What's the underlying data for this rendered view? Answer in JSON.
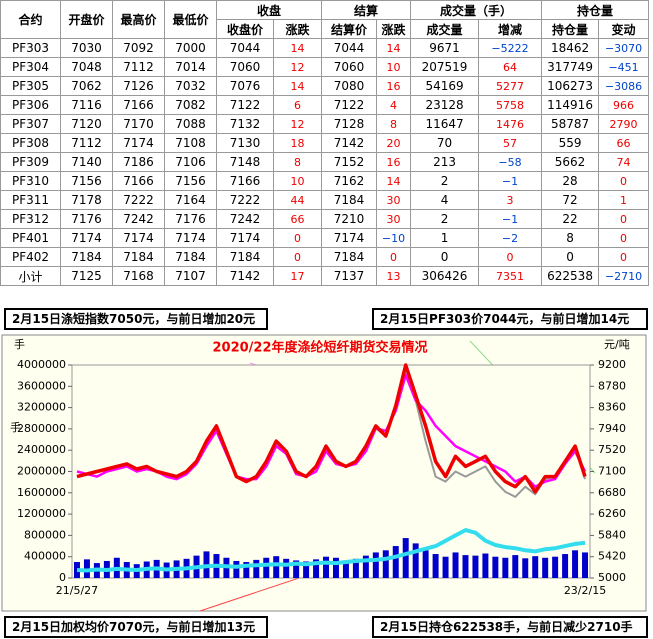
{
  "table": {
    "groups": [
      "合约",
      "开盘价",
      "最高价",
      "最低价",
      "收盘",
      "结算",
      "成交量（手）",
      "持仓量"
    ],
    "subheaders": [
      "收盘价",
      "涨跌",
      "结算价",
      "涨跌",
      "成交量",
      "增减",
      "持仓量",
      "变动"
    ],
    "rows": [
      [
        "PF303",
        "7030",
        "7092",
        "7000",
        "7044",
        "14",
        "7044",
        "14",
        "9671",
        "−5222",
        "18462",
        "−3070"
      ],
      [
        "PF304",
        "7048",
        "7112",
        "7014",
        "7060",
        "12",
        "7060",
        "10",
        "207519",
        "64",
        "317749",
        "−451"
      ],
      [
        "PF305",
        "7062",
        "7126",
        "7032",
        "7076",
        "14",
        "7080",
        "16",
        "54169",
        "5277",
        "106273",
        "−3086"
      ],
      [
        "PF306",
        "7116",
        "7166",
        "7082",
        "7122",
        "6",
        "7122",
        "4",
        "23128",
        "5758",
        "114916",
        "966"
      ],
      [
        "PF307",
        "7120",
        "7170",
        "7088",
        "7132",
        "12",
        "7128",
        "8",
        "11647",
        "1476",
        "58787",
        "2790"
      ],
      [
        "PF308",
        "7112",
        "7174",
        "7108",
        "7130",
        "18",
        "7142",
        "20",
        "70",
        "57",
        "559",
        "66"
      ],
      [
        "PF309",
        "7140",
        "7186",
        "7106",
        "7148",
        "8",
        "7152",
        "16",
        "213",
        "−58",
        "5662",
        "74"
      ],
      [
        "PF310",
        "7156",
        "7166",
        "7156",
        "7166",
        "10",
        "7162",
        "14",
        "2",
        "−1",
        "28",
        "0"
      ],
      [
        "PF311",
        "7178",
        "7222",
        "7164",
        "7222",
        "44",
        "7184",
        "30",
        "4",
        "3",
        "72",
        "1"
      ],
      [
        "PF312",
        "7176",
        "7242",
        "7176",
        "7242",
        "66",
        "7210",
        "30",
        "2",
        "−1",
        "22",
        "0"
      ],
      [
        "PF401",
        "7174",
        "7174",
        "7174",
        "7174",
        "0",
        "7174",
        "−10",
        "1",
        "−2",
        "8",
        "0"
      ],
      [
        "PF402",
        "7184",
        "7184",
        "7184",
        "7184",
        "0",
        "7184",
        "0",
        "0",
        "0",
        "0",
        "0"
      ],
      [
        "小计",
        "7125",
        "7168",
        "7107",
        "7142",
        "17",
        "7137",
        "13",
        "306426",
        "7351",
        "622538",
        "−2710"
      ]
    ]
  },
  "notes": [
    "2月15日涤短指数7050元，与前日增加20元",
    "2月15日PF303价7044元，与前日增加14元",
    "2月15日加权均价7070元，与前日增加13元",
    "2月15日持仓622538手，与前日减少2710手"
  ],
  "chart_data": {
    "type": "combo",
    "title": "2020/22年度涤纶短纤期货交易情况",
    "ylabel": "手",
    "y2label": "元/吨",
    "categories": [
      "21/5/27",
      null,
      null,
      null,
      null,
      null,
      null,
      null,
      null,
      null,
      null,
      null,
      null,
      null,
      null,
      null,
      null,
      null,
      null,
      null,
      null,
      null,
      null,
      null,
      null,
      null,
      null,
      null,
      null,
      null,
      null,
      null,
      null,
      null,
      null,
      null,
      null,
      null,
      null,
      null,
      null,
      null,
      null,
      null,
      null,
      null,
      null,
      null,
      null,
      null,
      null,
      "23/2/15"
    ],
    "ylim": [
      0,
      4000000
    ],
    "yticks": [
      0,
      400000,
      800000,
      1200000,
      1600000,
      2000000,
      2400000,
      2800000,
      3200000,
      3600000,
      4000000
    ],
    "y2lim": [
      5000,
      9200
    ],
    "y2ticks": [
      5000,
      5420,
      5840,
      6260,
      6680,
      7100,
      7520,
      7940,
      8360,
      8780,
      9200
    ],
    "series": [
      {
        "kind": "bar",
        "color": "#0000cc",
        "values": [
          300000,
          350000,
          280000,
          320000,
          380000,
          300000,
          260000,
          310000,
          340000,
          290000,
          330000,
          360000,
          420000,
          500000,
          450000,
          380000,
          320000,
          300000,
          340000,
          380000,
          410000,
          360000,
          330000,
          310000,
          350000,
          400000,
          380000,
          330000,
          360000,
          420000,
          480000,
          520000,
          600000,
          750000,
          650000,
          520000,
          450000,
          400000,
          480000,
          430000,
          420000,
          460000,
          400000,
          380000,
          430000,
          370000,
          410000,
          380000,
          400000,
          450000,
          520000,
          480000
        ]
      },
      {
        "kind": "line",
        "color": "#33ddee",
        "width": 4,
        "values": [
          150000,
          140000,
          160000,
          150000,
          170000,
          160000,
          150000,
          170000,
          180000,
          160000,
          170000,
          180000,
          200000,
          220000,
          230000,
          220000,
          210000,
          230000,
          240000,
          250000,
          260000,
          250000,
          270000,
          260000,
          280000,
          290000,
          280000,
          300000,
          320000,
          330000,
          340000,
          360000,
          400000,
          450000,
          500000,
          550000,
          600000,
          700000,
          800000,
          900000,
          850000,
          700000,
          620000,
          580000,
          560000,
          520000,
          500000,
          540000,
          560000,
          600000,
          640000,
          660000
        ]
      },
      {
        "kind": "line",
        "axis": "y2",
        "color": "#999999",
        "width": 2,
        "values": [
          7000,
          7050,
          7100,
          7150,
          7200,
          7250,
          7150,
          7200,
          7100,
          7050,
          7000,
          7100,
          7300,
          7700,
          7950,
          7450,
          7000,
          6900,
          7000,
          7300,
          7650,
          7500,
          7100,
          7000,
          7200,
          7600,
          7300,
          7200,
          7300,
          7600,
          7950,
          7800,
          8400,
          9100,
          8500,
          7700,
          7000,
          6900,
          7100,
          7000,
          7100,
          7200,
          6900,
          6700,
          6600,
          6800,
          6650,
          6950,
          7000,
          7300,
          7600,
          6950
        ]
      },
      {
        "kind": "line",
        "axis": "y2",
        "color": "#ff00ff",
        "width": 2.5,
        "values": [
          7100,
          7050,
          7000,
          7100,
          7150,
          7200,
          7100,
          7150,
          7100,
          7000,
          6950,
          7050,
          7250,
          7600,
          7900,
          7450,
          7000,
          6950,
          6950,
          7200,
          7600,
          7450,
          7050,
          7000,
          7100,
          7500,
          7250,
          7200,
          7250,
          7500,
          7950,
          7900,
          8300,
          9000,
          8500,
          8300,
          8000,
          7800,
          7600,
          7500,
          7400,
          7300,
          7200,
          7100,
          6900,
          7000,
          6800,
          6900,
          6950,
          7250,
          7500,
          7100
        ]
      },
      {
        "kind": "line",
        "axis": "y2",
        "color": "#ee0000",
        "width": 3.5,
        "values": [
          7000,
          7050,
          7100,
          7150,
          7200,
          7250,
          7150,
          7200,
          7100,
          7050,
          7000,
          7100,
          7300,
          7700,
          8000,
          7500,
          7000,
          6900,
          7000,
          7300,
          7700,
          7500,
          7100,
          7000,
          7200,
          7600,
          7300,
          7200,
          7300,
          7600,
          8000,
          7800,
          8400,
          9200,
          8600,
          8000,
          7300,
          7000,
          7400,
          7200,
          7300,
          7400,
          7100,
          6900,
          6800,
          7000,
          6700,
          7000,
          7000,
          7300,
          7600,
          7000
        ]
      }
    ]
  }
}
